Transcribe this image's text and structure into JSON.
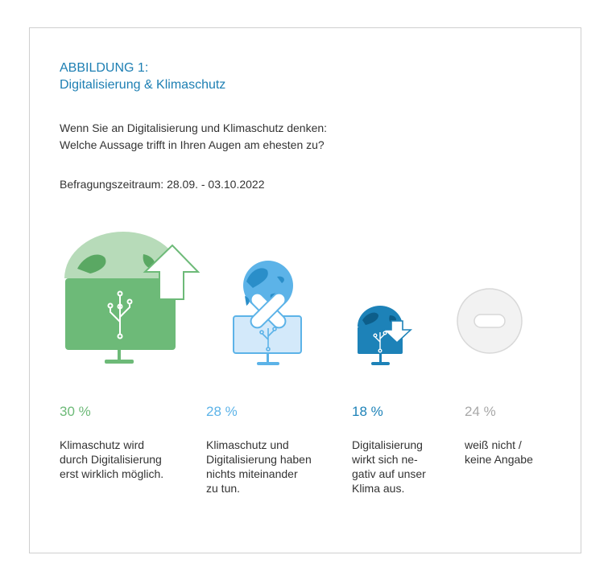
{
  "figure": {
    "label": "ABBILDUNG 1:",
    "title": "Digitalisierung & Klimaschutz",
    "question_line1": "Wenn Sie an Digitalisierung und Klimaschutz denken:",
    "question_line2": "Welche Aussage trifft in Ihren Augen am ehesten zu?",
    "period": "Befragungszeitraum: 28.09. - 03.10.2022"
  },
  "chart_data": {
    "type": "bar",
    "categories": [
      "Klimaschutz wird durch Digitalisierung erst wirklich möglich.",
      "Klimaschutz und Digitalisierung haben nichts miteinander zu tun.",
      "Digitalisierung wirkt sich negativ auf unser Klima aus.",
      "weiß nicht / keine Angabe"
    ],
    "values": [
      30,
      28,
      18,
      24
    ],
    "unit": "%"
  },
  "items": [
    {
      "pct": "30 %",
      "desc": "Klimaschutz wird\ndurch Digitalisierung\nerst wirklich möglich.",
      "color": "#6dba78"
    },
    {
      "pct": "28 %",
      "desc": "Klimaschutz und\nDigitalisierung haben\nnichts miteinander\nzu tun.",
      "color": "#5cb3e8"
    },
    {
      "pct": "18 %",
      "desc": "Digitalisierung\nwirkt sich ne-\ngativ auf unser\nKlima aus.",
      "color": "#1d82b8"
    },
    {
      "pct": "24 %",
      "desc": "weiß nicht /\nkeine Angabe",
      "color": "#a8a8a8"
    }
  ],
  "icons": [
    "monitor-globe-up-arrow-icon",
    "monitor-globe-cross-icon",
    "monitor-globe-down-arrow-icon",
    "minus-circle-icon"
  ]
}
